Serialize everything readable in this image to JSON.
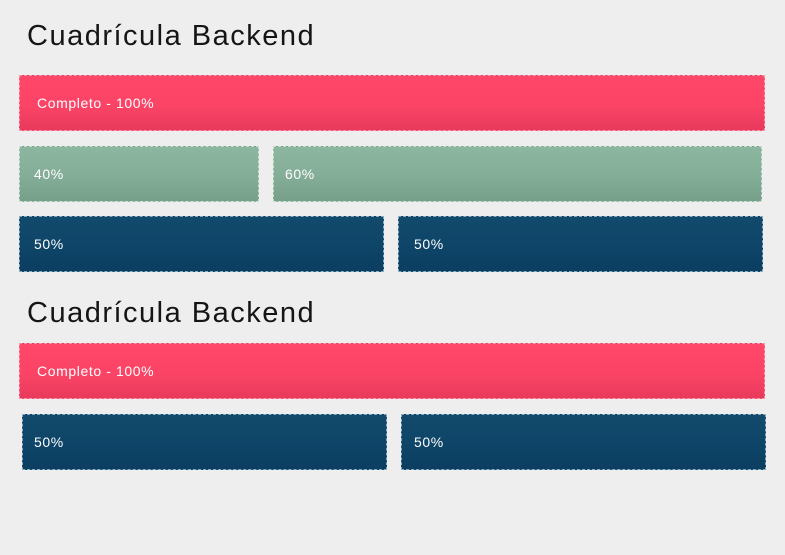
{
  "sections": [
    {
      "title": "Cuadrícula Backend",
      "rows": [
        [
          {
            "label": "Completo - 100%",
            "color": "red"
          }
        ],
        [
          {
            "label": "40%",
            "color": "green"
          },
          {
            "label": "60%",
            "color": "green"
          }
        ],
        [
          {
            "label": "50%",
            "color": "blue"
          },
          {
            "label": "50%",
            "color": "blue"
          }
        ]
      ]
    },
    {
      "title": "Cuadrícula Backend",
      "rows": [
        [
          {
            "label": "Completo - 100%",
            "color": "red"
          }
        ],
        [
          {
            "label": "50%",
            "color": "blue"
          },
          {
            "label": "50%",
            "color": "blue"
          }
        ]
      ]
    }
  ],
  "colors": {
    "red": "#fb4466",
    "green": "#84ad98",
    "blue": "#0d4467",
    "background": "#eeeeee"
  }
}
